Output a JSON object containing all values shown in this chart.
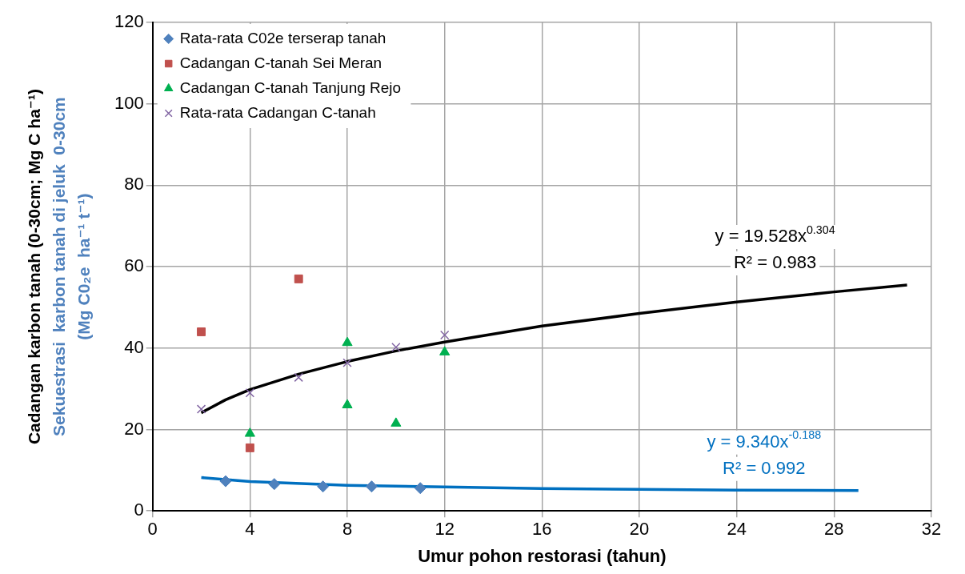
{
  "chart_data": {
    "type": "scatter",
    "xlabel": "Umur pohon restorasi (tahun)",
    "ylabel": "Cadangan karbon tanah (0-30cm; Mg C ha⁻¹)\nSekuestrasi  karbon tanah di jeluk  0-30cm\n(Mg C0₂e  ha⁻¹ t⁻¹)",
    "xlim": [
      0,
      32
    ],
    "xticks": [
      0,
      4,
      8,
      12,
      16,
      20,
      24,
      28,
      32
    ],
    "ylim": [
      0,
      120
    ],
    "yticks": [
      0,
      20,
      40,
      60,
      80,
      100,
      120
    ],
    "grid": true,
    "legend": "top left",
    "series": [
      {
        "name": "Rata-rata C02e terserap tanah",
        "color": "#4f81bd",
        "marker": "diamond",
        "x": [
          3,
          5,
          7,
          9,
          11
        ],
        "values": [
          7.3,
          6.6,
          6.0,
          6.0,
          5.6
        ]
      },
      {
        "name": "Cadangan C-tanah Sei Meran",
        "color": "#c0504d",
        "marker": "square",
        "x": [
          2,
          4,
          6
        ],
        "values": [
          44,
          15.5,
          57
        ]
      },
      {
        "name": "Cadangan C-tanah Tanjung Rejo",
        "color": "#00b050",
        "marker": "triangle",
        "x": [
          4,
          8,
          8,
          10,
          12
        ],
        "values": [
          19,
          41.3,
          26,
          21.5,
          39
        ]
      },
      {
        "name": "Rata-rata Cadangan C-tanah",
        "color": "#8064a2",
        "marker": "cross",
        "x": [
          2,
          4,
          6,
          8,
          10,
          12
        ],
        "values": [
          25,
          29,
          32.8,
          36.4,
          40.2,
          43.2
        ]
      },
      {
        "type": "line",
        "color": "#000000",
        "marker": "none",
        "x": [
          2,
          3,
          4,
          6,
          8,
          10,
          12,
          16,
          20,
          24,
          28,
          31
        ],
        "values": [
          24.1,
          27.3,
          29.8,
          33.6,
          36.7,
          39.3,
          41.5,
          45.4,
          48.5,
          51.3,
          53.8,
          55.5
        ]
      },
      {
        "type": "line",
        "color": "#0070c0",
        "marker": "none",
        "x": [
          2,
          4,
          8,
          12,
          16,
          20,
          24,
          29
        ],
        "values": [
          8.2,
          7.2,
          6.3,
          5.9,
          5.5,
          5.3,
          5.1,
          5.0
        ]
      }
    ],
    "annotations": [
      "y = 19.528x$^{0.304}$",
      "R² = 0.983",
      "y = 9.340x$^{-0.188}$",
      "R² = 0.992"
    ]
  }
}
